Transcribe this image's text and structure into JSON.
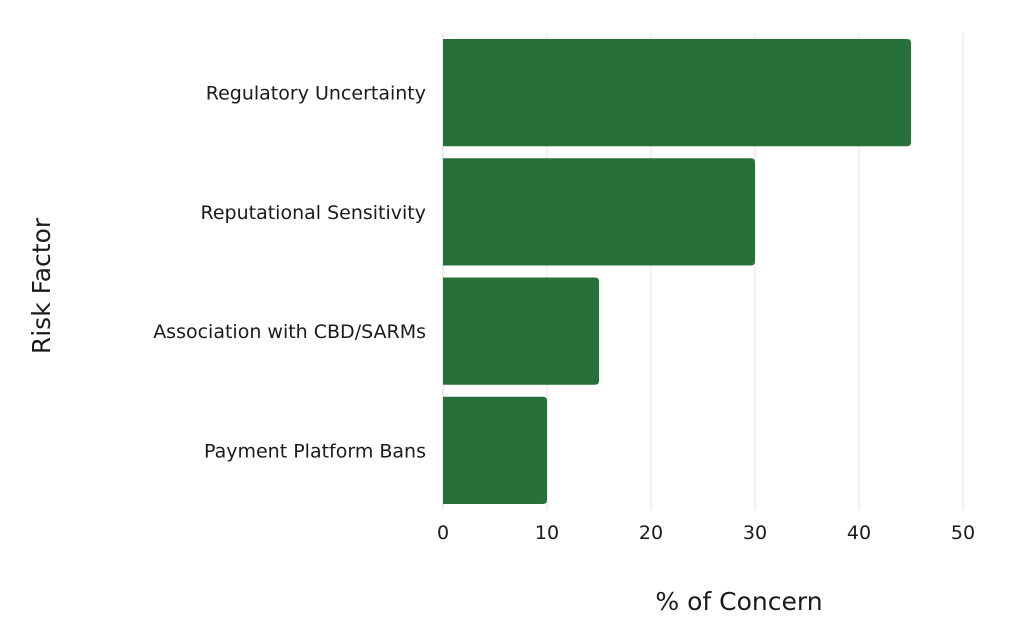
{
  "chart_data": {
    "type": "bar",
    "orientation": "horizontal",
    "categories": [
      "Regulatory Uncertainty",
      "Reputational Sensitivity",
      "Association with CBD/SARMs",
      "Payment Platform Bans"
    ],
    "values": [
      45,
      30,
      15,
      10
    ],
    "xlabel": "% of Concern",
    "ylabel": "Risk Factor",
    "xlim": [
      0,
      50
    ],
    "xticks": [
      0,
      10,
      20,
      30,
      40,
      50
    ],
    "grid": "vertical",
    "legend": "none",
    "colors": {
      "bar": "#28703a"
    }
  }
}
